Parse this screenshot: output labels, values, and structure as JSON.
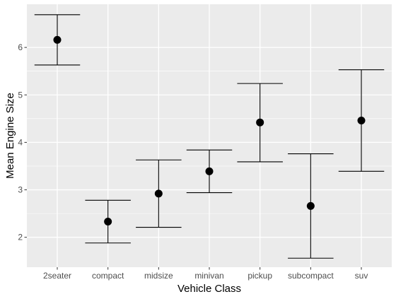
{
  "chart_data": {
    "type": "errorbar",
    "title": "",
    "xlabel": "Vehicle Class",
    "ylabel": "Mean Engine Size",
    "categories": [
      "2seater",
      "compact",
      "midsize",
      "minivan",
      "pickup",
      "subcompact",
      "suv"
    ],
    "means": [
      6.16,
      2.33,
      2.92,
      3.39,
      4.42,
      2.66,
      4.46
    ],
    "lower": [
      5.63,
      1.88,
      2.21,
      2.94,
      3.59,
      1.56,
      3.39
    ],
    "upper": [
      6.69,
      2.78,
      3.63,
      3.84,
      5.24,
      3.76,
      5.53
    ],
    "yticks": [
      "2",
      "3",
      "4",
      "5",
      "6"
    ],
    "ylim": [
      1.37,
      6.91
    ],
    "grid": true,
    "colors": {
      "panel": "#ebebeb",
      "grid": "#ffffff",
      "mark": "#000000"
    }
  }
}
